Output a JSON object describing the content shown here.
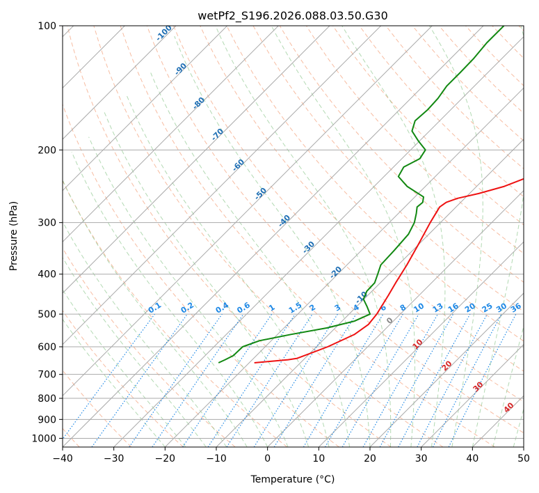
{
  "chart_data": {
    "type": "skew-t",
    "title": "wetPf2_S196.2026.088.03.50.G30",
    "xlabel": "Temperature (°C)",
    "ylabel": "Pressure (hPa)",
    "xlim": [
      -40,
      50
    ],
    "plim": [
      1050,
      100
    ],
    "x_ticks": [
      -40,
      -30,
      -20,
      -10,
      0,
      10,
      20,
      30,
      40,
      50
    ],
    "p_ticks": [
      100,
      200,
      300,
      400,
      500,
      600,
      700,
      800,
      900,
      1000
    ],
    "colors": {
      "temperature": "#ee1111",
      "dewpoint": "#118811",
      "dry_adiabat": "#f4a582",
      "moist_adiabat": "#7fbf7f",
      "mixing_ratio": "#1e88e5",
      "grid": "#aaaaaa",
      "isotherm_label": "#1f6fb4",
      "warm_label": "#d62728"
    },
    "series": [
      {
        "name": "Temperature",
        "points": [
          [
            656,
            -19
          ],
          [
            645,
            -13
          ],
          [
            640,
            -11.5
          ],
          [
            600,
            -7.8
          ],
          [
            560,
            -5
          ],
          [
            530,
            -4.2
          ],
          [
            500,
            -4.6
          ],
          [
            450,
            -6.0
          ],
          [
            420,
            -7.0
          ],
          [
            380,
            -8.3
          ],
          [
            340,
            -10.0
          ],
          [
            300,
            -12.0
          ],
          [
            275,
            -13.2
          ],
          [
            268,
            -12.8
          ],
          [
            262,
            -11.4
          ],
          [
            255,
            -8.2
          ],
          [
            245,
            -4.6
          ],
          [
            230,
            -1.1
          ],
          [
            210,
            2.3
          ],
          [
            190,
            5.8
          ],
          [
            170,
            8.2
          ],
          [
            150,
            10.0
          ],
          [
            130,
            12.4
          ],
          [
            115,
            14.5
          ],
          [
            100,
            16.2
          ]
        ]
      },
      {
        "name": "Dewpoint",
        "points": [
          [
            656,
            -26
          ],
          [
            645,
            -25.3
          ],
          [
            630,
            -24.5
          ],
          [
            600,
            -24.4
          ],
          [
            580,
            -22.3
          ],
          [
            560,
            -17.4
          ],
          [
            540,
            -11.6
          ],
          [
            520,
            -7.6
          ],
          [
            500,
            -5.9
          ],
          [
            480,
            -7.9
          ],
          [
            460,
            -10.1
          ],
          [
            440,
            -11.0
          ],
          [
            420,
            -11.1
          ],
          [
            400,
            -12.2
          ],
          [
            380,
            -13.4
          ],
          [
            350,
            -13.6
          ],
          [
            320,
            -14.0
          ],
          [
            300,
            -15.1
          ],
          [
            285,
            -16.5
          ],
          [
            275,
            -17.6
          ],
          [
            268,
            -17.4
          ],
          [
            260,
            -18.3
          ],
          [
            245,
            -23.6
          ],
          [
            232,
            -27.2
          ],
          [
            220,
            -28.0
          ],
          [
            210,
            -26.5
          ],
          [
            200,
            -27.1
          ],
          [
            190,
            -30.3
          ],
          [
            180,
            -33.4
          ],
          [
            170,
            -34.8
          ],
          [
            160,
            -34.5
          ],
          [
            150,
            -34.7
          ],
          [
            140,
            -35.4
          ],
          [
            130,
            -35.4
          ],
          [
            120,
            -35.5
          ],
          [
            110,
            -36.0
          ],
          [
            100,
            -36.0
          ]
        ]
      }
    ],
    "isotherm_labels": [
      "-100",
      "-90",
      "-80",
      "-70",
      "-60",
      "-50",
      "-40",
      "-30",
      "-20",
      "-10"
    ],
    "mixing_ratio_labels": [
      "0.1",
      "0.2",
      "0.4",
      "0.6",
      "1",
      "1.5",
      "2",
      "3",
      "4",
      "6",
      "8",
      "10",
      "13",
      "16",
      "20",
      "25",
      "30",
      "36"
    ],
    "theta_e_labels": [
      "0",
      "10",
      "20",
      "30",
      "40"
    ]
  }
}
